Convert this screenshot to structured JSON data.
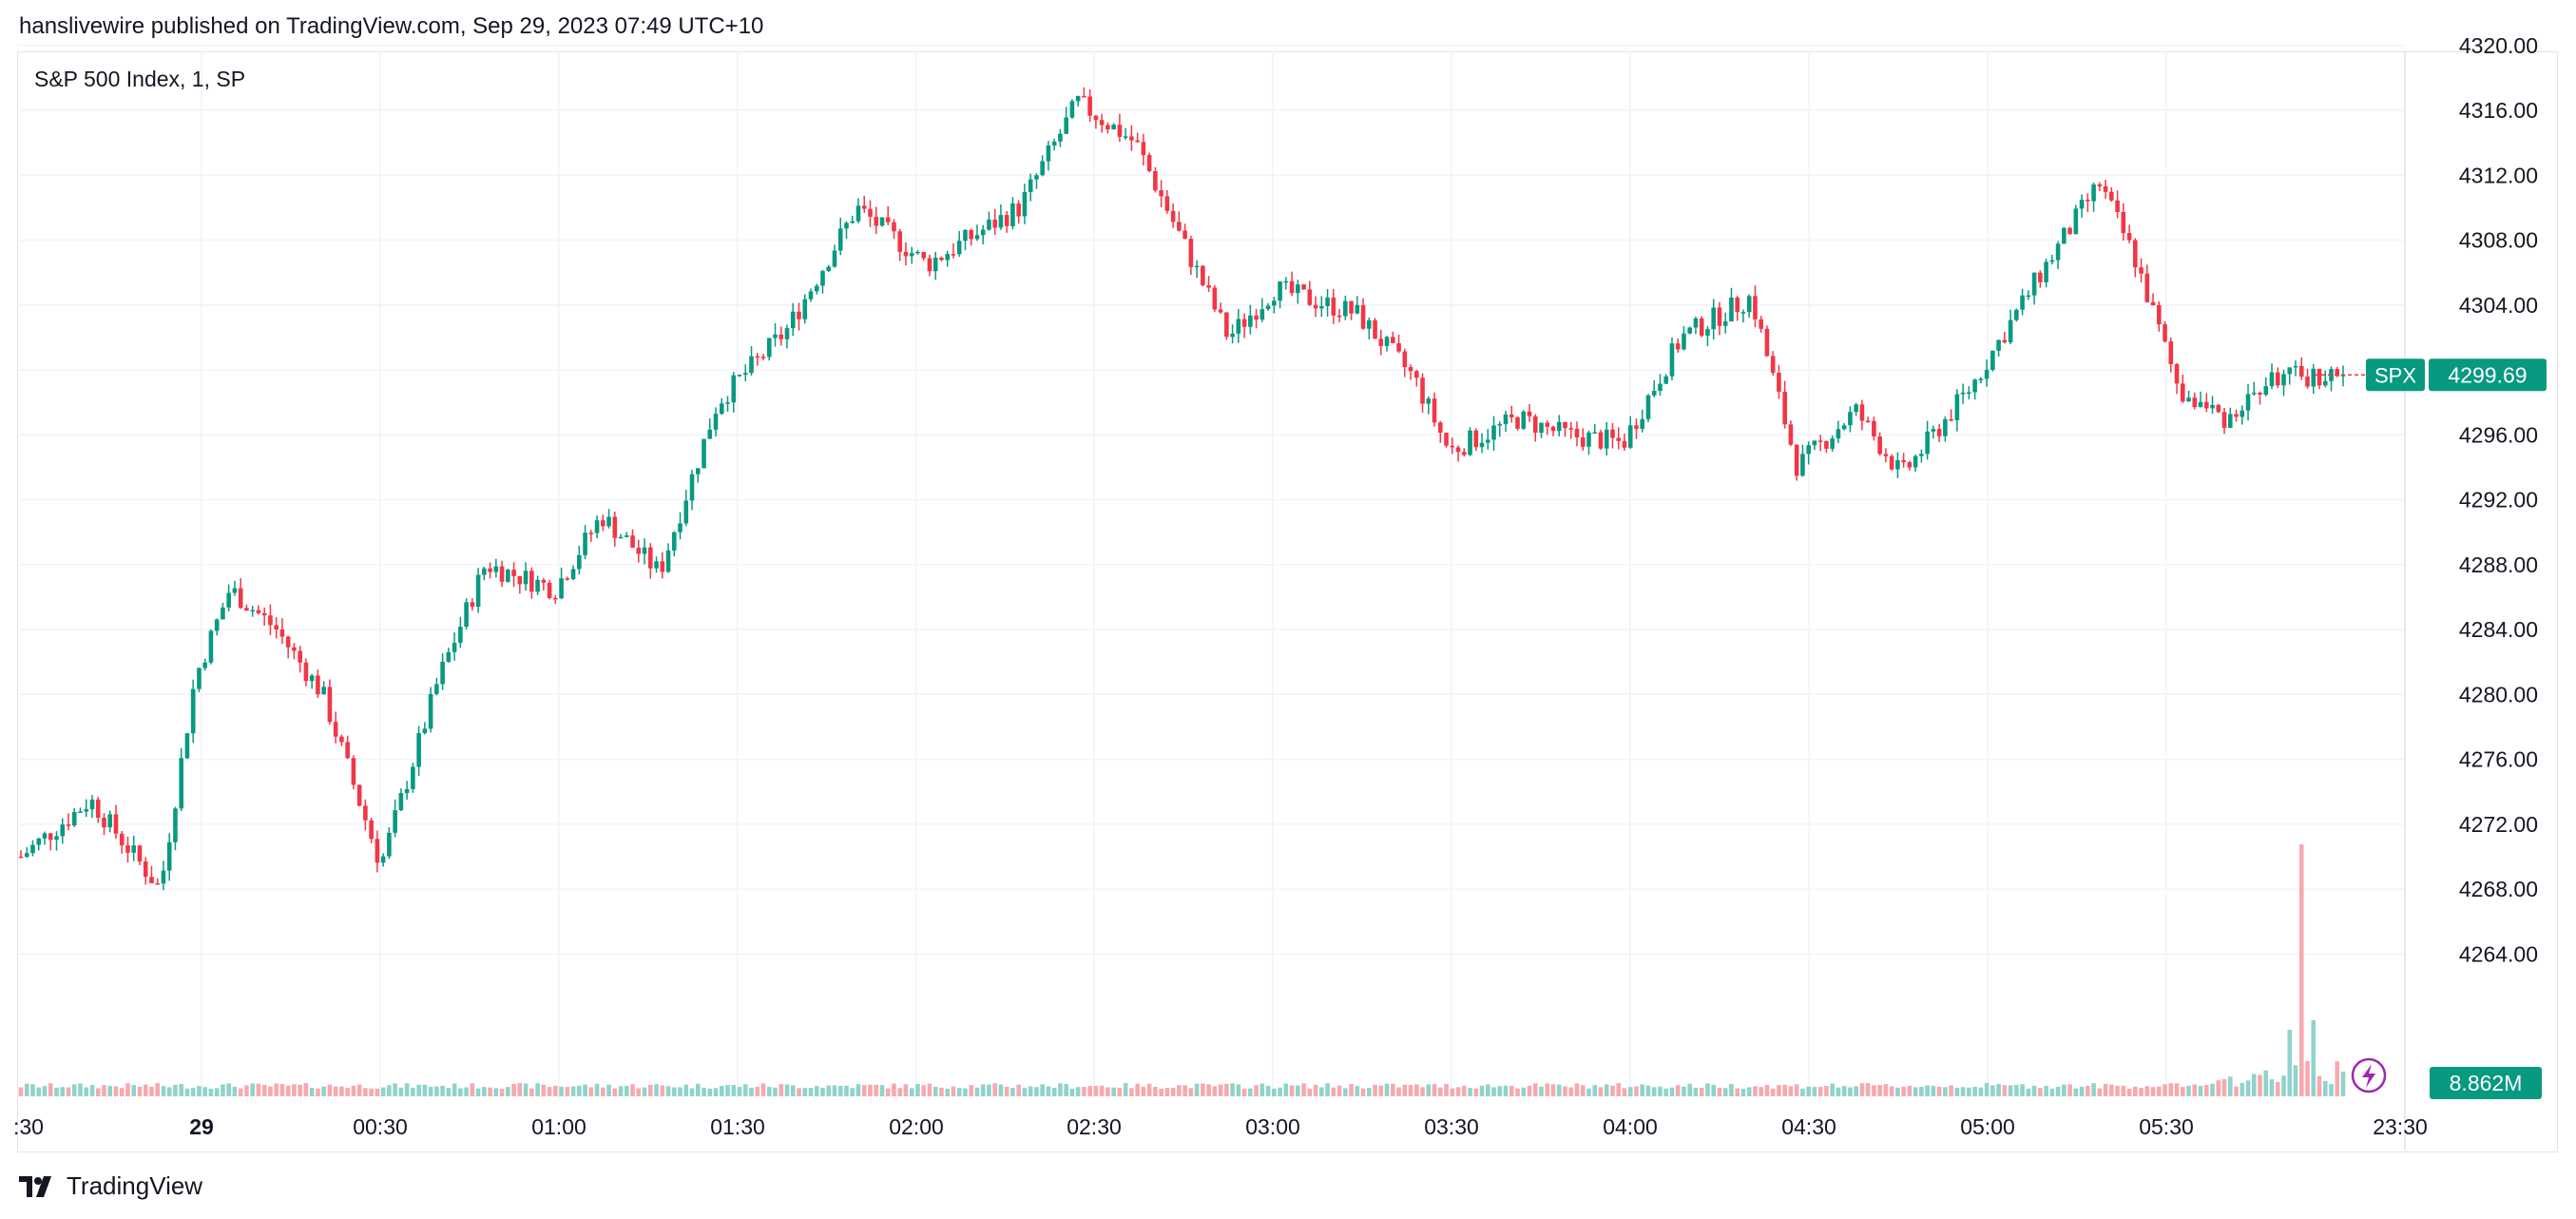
{
  "header": {
    "published_line": "hanslivewire published on TradingView.com, Sep 29, 2023 07:49 UTC+10"
  },
  "legend": {
    "title": "S&P 500 Index, 1, SP"
  },
  "footer": {
    "brand": "TradingView"
  },
  "colors": {
    "up": "#26a69a",
    "up_dark": "#089981",
    "down": "#f23645",
    "volume_up": "#8fd3cc",
    "volume_down": "#f7a9ae",
    "grid": "#f0f3fa",
    "axis_text": "#131722",
    "price_label_bg": "#089981",
    "lightning": "#9c27b0"
  },
  "price_scale": {
    "ticks": [
      "4320.00",
      "4316.00",
      "4312.00",
      "4308.00",
      "4304.00",
      "4300.00",
      "4296.00",
      "4292.00",
      "4288.00",
      "4284.00",
      "4280.00",
      "4276.00",
      "4272.00",
      "4268.00",
      "4264.00"
    ],
    "current_symbol": "SPX",
    "current_price": "4299.69",
    "volume_label": "8.862M"
  },
  "time_scale": {
    "ticks": [
      ":30",
      "29",
      "00:30",
      "01:00",
      "01:30",
      "02:00",
      "02:30",
      "03:00",
      "03:30",
      "04:00",
      "04:30",
      "05:00",
      "05:30",
      "23:30"
    ]
  },
  "chart_data": {
    "type": "candlestick",
    "symbol": "S&P 500 Index, 1, SP",
    "interval": "1 minute",
    "ylim": [
      4261,
      4324
    ],
    "grid": true,
    "x_ticks": [
      ":30",
      "29",
      "00:30",
      "01:00",
      "01:30",
      "02:00",
      "02:30",
      "03:00",
      "03:30",
      "04:00",
      "04:30",
      "05:00",
      "05:30",
      "23:30"
    ],
    "y_ticks": [
      4320,
      4316,
      4312,
      4308,
      4304,
      4300,
      4296,
      4292,
      4288,
      4284,
      4280,
      4276,
      4272,
      4268,
      4264
    ],
    "last_price": 4299.69,
    "last_volume": "8.862M",
    "anchor_closes": [
      {
        "t": 0,
        "c": 4270.0
      },
      {
        "t": 0.03,
        "c": 4273.5
      },
      {
        "t": 0.06,
        "c": 4268.0
      },
      {
        "t": 0.075,
        "c": 4281.0
      },
      {
        "t": 0.09,
        "c": 4286.5
      },
      {
        "t": 0.11,
        "c": 4284.0
      },
      {
        "t": 0.13,
        "c": 4280.0
      },
      {
        "t": 0.155,
        "c": 4269.5
      },
      {
        "t": 0.18,
        "c": 4281.0
      },
      {
        "t": 0.2,
        "c": 4288.0
      },
      {
        "t": 0.23,
        "c": 4286.5
      },
      {
        "t": 0.25,
        "c": 4291.0
      },
      {
        "t": 0.275,
        "c": 4287.5
      },
      {
        "t": 0.3,
        "c": 4298.0
      },
      {
        "t": 0.33,
        "c": 4302.5
      },
      {
        "t": 0.36,
        "c": 4310.0
      },
      {
        "t": 0.39,
        "c": 4306.5
      },
      {
        "t": 0.43,
        "c": 4310.0
      },
      {
        "t": 0.455,
        "c": 4316.5
      },
      {
        "t": 0.48,
        "c": 4314.0
      },
      {
        "t": 0.5,
        "c": 4308.0
      },
      {
        "t": 0.52,
        "c": 4302.0
      },
      {
        "t": 0.54,
        "c": 4305.0
      },
      {
        "t": 0.575,
        "c": 4303.5
      },
      {
        "t": 0.6,
        "c": 4299.5
      },
      {
        "t": 0.615,
        "c": 4295.0
      },
      {
        "t": 0.645,
        "c": 4297.0
      },
      {
        "t": 0.665,
        "c": 4296.0
      },
      {
        "t": 0.69,
        "c": 4295.5
      },
      {
        "t": 0.715,
        "c": 4302.0
      },
      {
        "t": 0.745,
        "c": 4304.5
      },
      {
        "t": 0.765,
        "c": 4294.0
      },
      {
        "t": 0.79,
        "c": 4297.5
      },
      {
        "t": 0.81,
        "c": 4293.5
      },
      {
        "t": 0.84,
        "c": 4299.0
      },
      {
        "t": 0.87,
        "c": 4306.0
      },
      {
        "t": 0.895,
        "c": 4311.5
      },
      {
        "t": 0.91,
        "c": 4307.0
      },
      {
        "t": 0.93,
        "c": 4298.5
      },
      {
        "t": 0.95,
        "c": 4297.0
      },
      {
        "t": 0.97,
        "c": 4299.5
      },
      {
        "t": 1.0,
        "c": 4299.69
      }
    ]
  }
}
